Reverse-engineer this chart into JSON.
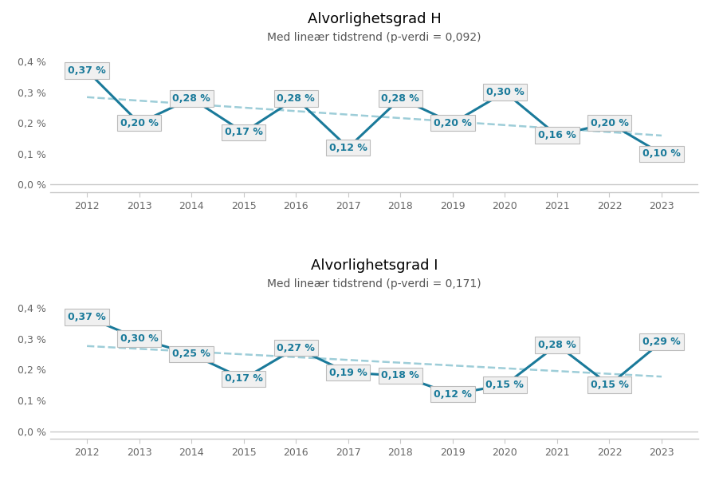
{
  "H": {
    "title": "Alvorlighetsgrad H",
    "subtitle": "Med lineær tidstrend (p-verdi = 0,092)",
    "years": [
      2012,
      2013,
      2014,
      2015,
      2016,
      2017,
      2018,
      2019,
      2020,
      2021,
      2022,
      2023
    ],
    "values": [
      0.37,
      0.2,
      0.28,
      0.17,
      0.28,
      0.12,
      0.28,
      0.2,
      0.3,
      0.16,
      0.2,
      0.1
    ],
    "labels": [
      "0,37 %",
      "0,20 %",
      "0,28 %",
      "0,17 %",
      "0,28 %",
      "0,12 %",
      "0,28 %",
      "0,20 %",
      "0,30 %",
      "0,16 %",
      "0,20 %",
      "0,10 %"
    ]
  },
  "I": {
    "title": "Alvorlighetsgrad I",
    "subtitle": "Med lineær tidstrend (p-verdi = 0,171)",
    "years": [
      2012,
      2013,
      2014,
      2015,
      2016,
      2017,
      2018,
      2019,
      2020,
      2021,
      2022,
      2023
    ],
    "values": [
      0.37,
      0.3,
      0.25,
      0.17,
      0.27,
      0.19,
      0.18,
      0.12,
      0.15,
      0.28,
      0.15,
      0.29
    ],
    "labels": [
      "0,37 %",
      "0,30 %",
      "0,25 %",
      "0,17 %",
      "0,27 %",
      "0,19 %",
      "0,18 %",
      "0,12 %",
      "0,15 %",
      "0,28 %",
      "0,15 %",
      "0,29 %"
    ]
  },
  "line_color": "#1a7a9a",
  "trend_color": "#9dcdd8",
  "box_face_color": "#f0f0f0",
  "box_edge_color": "#bbbbbb",
  "text_color": "#1a7a9a",
  "axis_tick_color": "#666666",
  "title_fontsize": 13,
  "subtitle_fontsize": 10,
  "label_fontsize": 9,
  "yticks": [
    0.0,
    0.1,
    0.2,
    0.3,
    0.4
  ],
  "ytick_labels": [
    "0,0 %",
    "0,1 %",
    "0,2 %",
    "0,3 %",
    "0,4 %"
  ],
  "ylim": [
    -0.025,
    0.46
  ],
  "xlim": [
    2011.3,
    2023.7
  ]
}
